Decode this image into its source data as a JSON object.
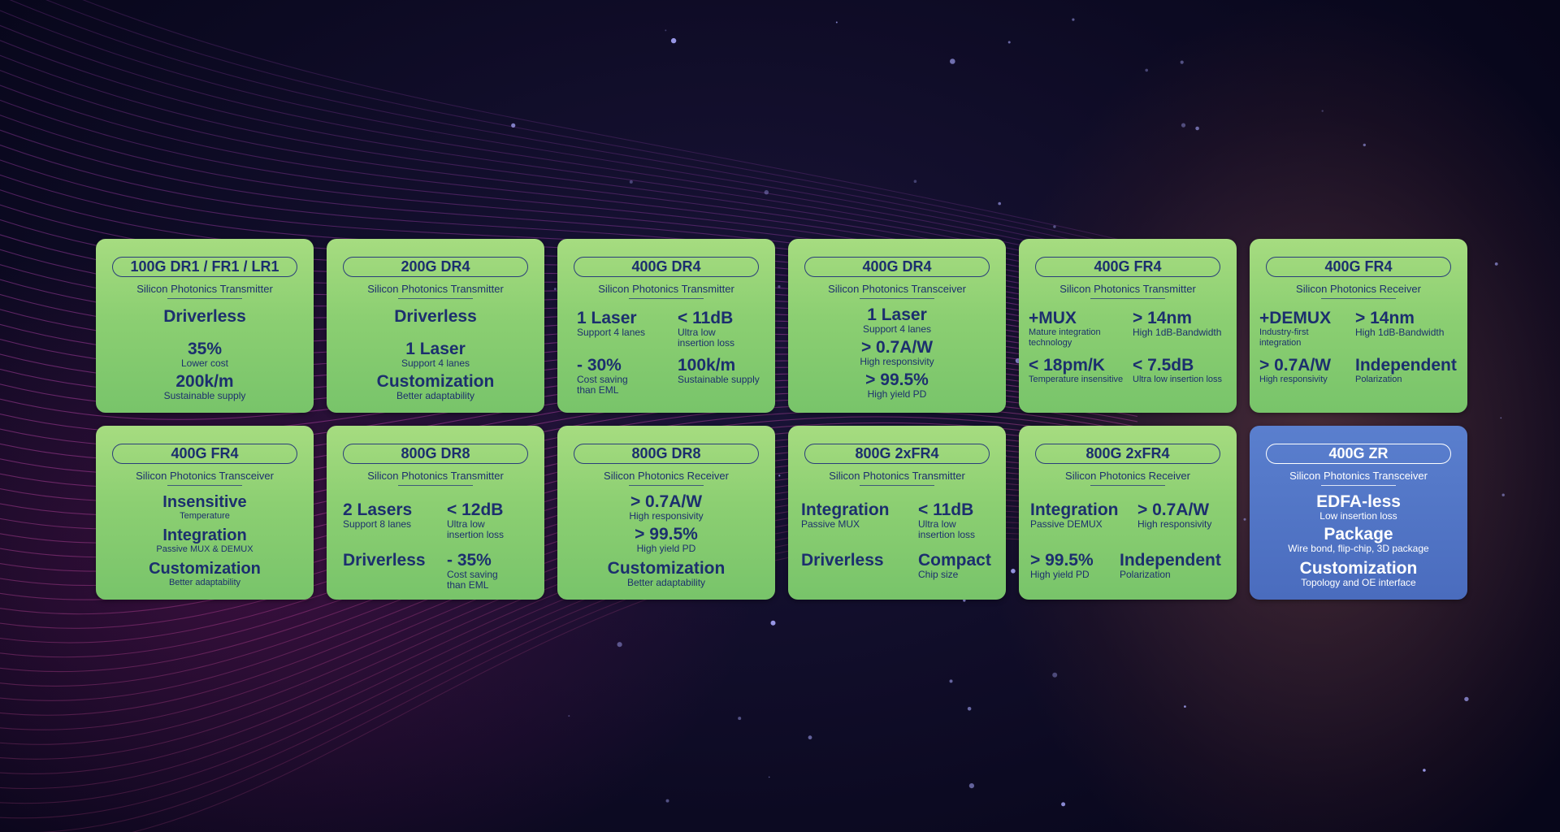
{
  "cards": [
    {
      "title": "100G DR1 / FR1 / LR1",
      "subtitle": "Silicon Photonics Transmitter",
      "items": [
        {
          "big": "Driverless",
          "small": ""
        },
        {
          "big": "35%",
          "small": "Lower cost"
        },
        {
          "big": "200k/m",
          "small": "Sustainable supply"
        }
      ]
    },
    {
      "title": "200G DR4",
      "subtitle": "Silicon Photonics Transmitter",
      "items": [
        {
          "big": "Driverless",
          "small": ""
        },
        {
          "big": "1 Laser",
          "small": "Support 4 lanes"
        },
        {
          "big": "Customization",
          "small": "Better adaptability"
        }
      ]
    },
    {
      "title": "400G DR4",
      "subtitle": "Silicon Photonics Transmitter",
      "items": [
        {
          "big": "1 Laser",
          "small": "Support 4 lanes"
        },
        {
          "big": "< 11dB",
          "small": "Ultra low insertion loss"
        },
        {
          "big": "- 30%",
          "small": "Cost saving than EML"
        },
        {
          "big": "100k/m",
          "small": "Sustainable supply"
        }
      ]
    },
    {
      "title": "400G DR4",
      "subtitle": "Silicon Photonics Transceiver",
      "items": [
        {
          "big": "1 Laser",
          "small": "Support 4 lanes"
        },
        {
          "big": "> 0.7A/W",
          "small": "High responsivity"
        },
        {
          "big": "> 99.5%",
          "small": "High yield PD"
        }
      ]
    },
    {
      "title": "400G FR4",
      "subtitle": "Silicon Photonics Transmitter",
      "items": [
        {
          "big": "+MUX",
          "small": "Mature integration technology"
        },
        {
          "big": "> 14nm",
          "small": "High 1dB-Bandwidth"
        },
        {
          "big": "< 18pm/K",
          "small": "Temperature insensitive"
        },
        {
          "big": "< 7.5dB",
          "small": "Ultra low insertion loss"
        }
      ]
    },
    {
      "title": "400G FR4",
      "subtitle": "Silicon Photonics Receiver",
      "items": [
        {
          "big": "+DEMUX",
          "small": "Industry-first integration"
        },
        {
          "big": "> 14nm",
          "small": "High 1dB-Bandwidth"
        },
        {
          "big": "> 0.7A/W",
          "small": "High responsivity"
        },
        {
          "big": "Independent",
          "small": "Polarization"
        }
      ]
    },
    {
      "title": "400G FR4",
      "subtitle": "Silicon Photonics Transceiver",
      "items": [
        {
          "big": "Insensitive",
          "small": "Temperature"
        },
        {
          "big": "Integration",
          "small": "Passive MUX & DEMUX"
        },
        {
          "big": "Customization",
          "small": "Better adaptability"
        }
      ]
    },
    {
      "title": "800G DR8",
      "subtitle": "Silicon Photonics Transmitter",
      "items": [
        {
          "big": "2 Lasers",
          "small": "Support 8 lanes"
        },
        {
          "big": "< 12dB",
          "small": "Ultra low insertion loss"
        },
        {
          "big": "Driverless",
          "small": ""
        },
        {
          "big": "- 35%",
          "small": "Cost saving than EML"
        }
      ]
    },
    {
      "title": "800G DR8",
      "subtitle": "Silicon Photonics Receiver",
      "items": [
        {
          "big": "> 0.7A/W",
          "small": "High responsivity"
        },
        {
          "big": "> 99.5%",
          "small": "High yield PD"
        },
        {
          "big": "Customization",
          "small": "Better adaptability"
        }
      ]
    },
    {
      "title": "800G 2xFR4",
      "subtitle": "Silicon Photonics Transmitter",
      "items": [
        {
          "big": "Integration",
          "small": "Passive MUX"
        },
        {
          "big": "< 11dB",
          "small": "Ultra low insertion loss"
        },
        {
          "big": "Driverless",
          "small": ""
        },
        {
          "big": "Compact",
          "small": "Chip size"
        }
      ]
    },
    {
      "title": "800G 2xFR4",
      "subtitle": "Silicon Photonics Receiver",
      "items": [
        {
          "big": "Integration",
          "small": "Passive DEMUX"
        },
        {
          "big": "> 0.7A/W",
          "small": "High responsivity"
        },
        {
          "big": "> 99.5%",
          "small": "High yield PD"
        },
        {
          "big": "Independent",
          "small": "Polarization"
        }
      ]
    },
    {
      "title": "400G ZR",
      "subtitle": "Silicon Photonics Transceiver",
      "items": [
        {
          "big": "EDFA-less",
          "small": "Low insertion loss"
        },
        {
          "big": "Package",
          "small": "Wire bond, flip-chip, 3D package"
        },
        {
          "big": "Customization",
          "small": "Topology and OE interface"
        }
      ]
    }
  ],
  "colors": {
    "card_green": "#8ccf72",
    "card_blue": "#4a6cbe",
    "text_navy": "#1c2f6e"
  }
}
